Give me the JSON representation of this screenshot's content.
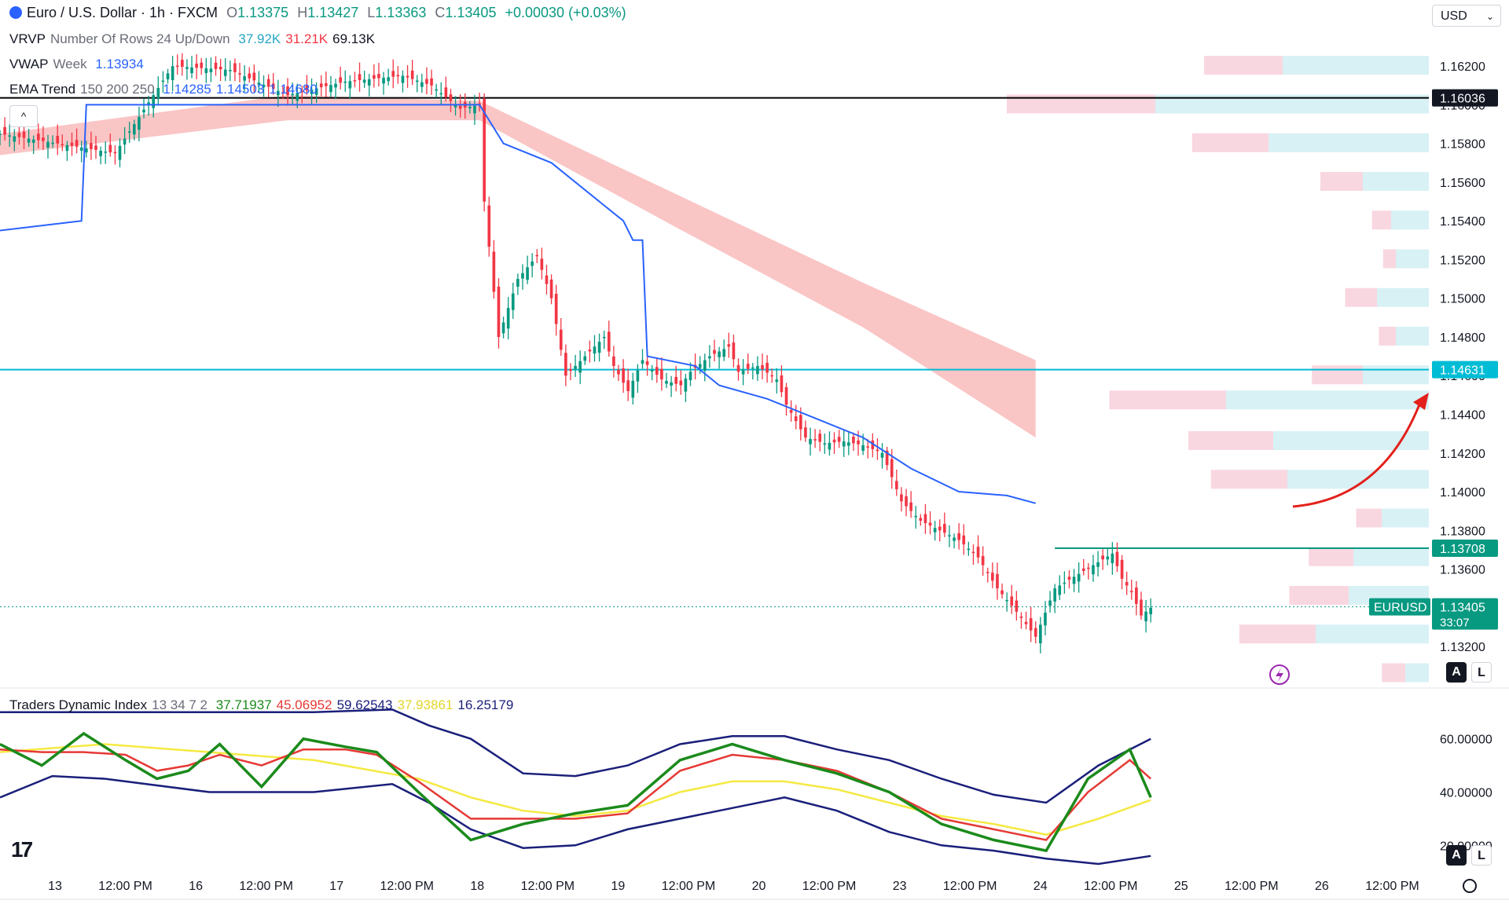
{
  "header": {
    "symbol": "Euro / U.S. Dollar · 1h · FXCM",
    "open_label": "O",
    "open": "1.13375",
    "high_label": "H",
    "high": "1.13427",
    "low_label": "L",
    "low": "1.13363",
    "close_label": "C",
    "close": "1.13405",
    "change": "+0.00030 (+0.03%)",
    "currency": "USD"
  },
  "indicators": {
    "vrvp": {
      "name": "VRVP",
      "params": "Number Of Rows 24 Up/Down",
      "up": "37.92K",
      "down": "31.21K",
      "total": "69.13K"
    },
    "vwap": {
      "name": "VWAP",
      "params": "Week",
      "value": "1.13934"
    },
    "ema": {
      "name": "EMA Trend",
      "params": "150 200 250",
      "v1": "1.14285",
      "v2": "1.14503",
      "v3": "1.14680"
    },
    "tdi": {
      "name": "Traders Dynamic Index",
      "params": "13 34 7 2",
      "v1": "37.71937",
      "v2": "45.06952",
      "v3": "59.62543",
      "v4": "37.93861",
      "v5": "16.25179"
    }
  },
  "badges": {
    "black_line": "1.16036",
    "cyan_line": "1.14631",
    "teal_line": "1.13708",
    "symbol_tag": "EURUSD",
    "last_price": "1.13405",
    "countdown": "33:07"
  },
  "buttons": {
    "auto": "A",
    "log": "L",
    "collapse": "^"
  },
  "colors": {
    "up": "#089981",
    "down": "#f23645",
    "vwap": "#2962ff",
    "ema_band": "#f7a6a6",
    "cyan_line": "#00bcd4",
    "teal_line": "#089981",
    "black_line": "#000000",
    "tdi_green": "#1b8a1b",
    "tdi_red": "#e53935",
    "tdi_yellow": "#f5e942",
    "tdi_band": "#1a1f7a",
    "profile_up": "#d4eff4",
    "profile_down": "#f8d3dd",
    "arrow": "#e3201b"
  },
  "chart_data": {
    "type": "candlestick",
    "symbol": "EURUSD",
    "timeframe": "1h",
    "y_ticks": [
      "1.16200",
      "1.16000",
      "1.15800",
      "1.15600",
      "1.15400",
      "1.15200",
      "1.15000",
      "1.14800",
      "1.14600",
      "1.14400",
      "1.14200",
      "1.14000",
      "1.13800",
      "1.13600",
      "1.13400",
      "1.13200"
    ],
    "ylim": [
      1.1305,
      1.1642
    ],
    "x_ticks": [
      "13",
      "12:00 PM",
      "16",
      "12:00 PM",
      "17",
      "12:00 PM",
      "18",
      "12:00 PM",
      "19",
      "12:00 PM",
      "20",
      "12:00 PM",
      "23",
      "12:00 PM",
      "24",
      "12:00 PM",
      "25",
      "12:00 PM",
      "26",
      "12:00 PM"
    ],
    "price_path": [
      [
        0,
        1.1585
      ],
      [
        12,
        1.158
      ],
      [
        24,
        1.1575
      ],
      [
        36,
        1.162
      ],
      [
        48,
        1.1618
      ],
      [
        60,
        1.1605
      ],
      [
        72,
        1.1612
      ],
      [
        84,
        1.1615
      ],
      [
        90,
        1.161
      ],
      [
        96,
        1.1598
      ],
      [
        100,
        1.16
      ],
      [
        101,
        1.155
      ],
      [
        104,
        1.148
      ],
      [
        108,
        1.151
      ],
      [
        112,
        1.1522
      ],
      [
        115,
        1.15
      ],
      [
        118,
        1.146
      ],
      [
        122,
        1.147
      ],
      [
        126,
        1.148
      ],
      [
        128,
        1.1465
      ],
      [
        131,
        1.1452
      ],
      [
        134,
        1.1468
      ],
      [
        138,
        1.1458
      ],
      [
        142,
        1.1455
      ],
      [
        144,
        1.1462
      ],
      [
        148,
        1.147
      ],
      [
        152,
        1.1475
      ],
      [
        154,
        1.1462
      ],
      [
        158,
        1.1465
      ],
      [
        162,
        1.1458
      ],
      [
        164,
        1.1445
      ],
      [
        168,
        1.1428
      ],
      [
        172,
        1.1425
      ],
      [
        176,
        1.1426
      ],
      [
        180,
        1.1424
      ],
      [
        184,
        1.142
      ],
      [
        188,
        1.1395
      ],
      [
        192,
        1.1385
      ],
      [
        196,
        1.138
      ],
      [
        200,
        1.1375
      ],
      [
        204,
        1.1366
      ],
      [
        208,
        1.135
      ],
      [
        212,
        1.1338
      ],
      [
        216,
        1.1325
      ],
      [
        220,
        1.135
      ],
      [
        224,
        1.1356
      ],
      [
        228,
        1.1362
      ],
      [
        232,
        1.1368
      ],
      [
        234,
        1.1355
      ],
      [
        236,
        1.1348
      ],
      [
        238,
        1.1336
      ],
      [
        240,
        1.134
      ]
    ],
    "vwap": [
      [
        0,
        1.1535
      ],
      [
        17,
        1.154
      ],
      [
        18,
        1.16
      ],
      [
        100,
        1.16
      ],
      [
        105,
        1.158
      ],
      [
        115,
        1.157
      ],
      [
        125,
        1.155
      ],
      [
        130,
        1.154
      ],
      [
        132,
        1.153
      ],
      [
        134,
        1.153
      ],
      [
        135,
        1.147
      ],
      [
        145,
        1.1465
      ],
      [
        150,
        1.1455
      ],
      [
        160,
        1.1448
      ],
      [
        170,
        1.1438
      ],
      [
        180,
        1.1428
      ],
      [
        190,
        1.1412
      ],
      [
        200,
        1.14
      ],
      [
        210,
        1.1398
      ],
      [
        216,
        1.1394
      ]
    ],
    "ema_band_upper": [
      [
        0,
        1.1585
      ],
      [
        60,
        1.1605
      ],
      [
        100,
        1.1602
      ],
      [
        140,
        1.1555
      ],
      [
        180,
        1.1508
      ],
      [
        216,
        1.1468
      ]
    ],
    "ema_band_lower": [
      [
        0,
        1.1574
      ],
      [
        60,
        1.1592
      ],
      [
        100,
        1.1592
      ],
      [
        140,
        1.1538
      ],
      [
        180,
        1.1485
      ],
      [
        216,
        1.1428
      ]
    ],
    "horizontal_levels": [
      1.16036,
      1.14631,
      1.13708
    ],
    "last_price": 1.13405,
    "volume_profile": [
      {
        "price": 1.162,
        "up": 0.31,
        "down": 0.37
      },
      {
        "price": 1.16,
        "up": 0.58,
        "down": 0.7
      },
      {
        "price": 1.158,
        "up": 0.34,
        "down": 0.36
      },
      {
        "price": 1.156,
        "up": 0.14,
        "down": 0.2
      },
      {
        "price": 1.154,
        "up": 0.08,
        "down": 0.09
      },
      {
        "price": 1.152,
        "up": 0.07,
        "down": 0.06
      },
      {
        "price": 1.15,
        "up": 0.11,
        "down": 0.15
      },
      {
        "price": 1.148,
        "up": 0.07,
        "down": 0.08
      },
      {
        "price": 1.146,
        "up": 0.14,
        "down": 0.24
      },
      {
        "price": 1.1447,
        "up": 0.43,
        "down": 0.55
      },
      {
        "price": 1.1426,
        "up": 0.33,
        "down": 0.4
      },
      {
        "price": 1.1406,
        "up": 0.3,
        "down": 0.36
      },
      {
        "price": 1.1386,
        "up": 0.1,
        "down": 0.12
      },
      {
        "price": 1.1366,
        "up": 0.16,
        "down": 0.21
      },
      {
        "price": 1.1346,
        "up": 0.17,
        "down": 0.28
      },
      {
        "price": 1.1326,
        "up": 0.24,
        "down": 0.36
      },
      {
        "price": 1.1306,
        "up": 0.05,
        "down": 0.11
      }
    ]
  },
  "tdi_data": {
    "y_ticks": [
      "60.00000",
      "40.00000",
      "20.00000"
    ],
    "ylim": [
      13,
      72
    ],
    "green": [
      [
        0,
        58
      ],
      [
        8,
        50
      ],
      [
        16,
        62
      ],
      [
        24,
        52
      ],
      [
        30,
        45
      ],
      [
        36,
        48
      ],
      [
        42,
        58
      ],
      [
        50,
        42
      ],
      [
        58,
        60
      ],
      [
        66,
        57
      ],
      [
        72,
        55
      ],
      [
        80,
        40
      ],
      [
        90,
        22
      ],
      [
        100,
        28
      ],
      [
        110,
        32
      ],
      [
        120,
        35
      ],
      [
        130,
        52
      ],
      [
        140,
        58
      ],
      [
        150,
        52
      ],
      [
        160,
        47
      ],
      [
        170,
        40
      ],
      [
        180,
        28
      ],
      [
        190,
        22
      ],
      [
        200,
        18
      ],
      [
        208,
        45
      ],
      [
        216,
        56
      ],
      [
        220,
        38
      ]
    ],
    "red": [
      [
        0,
        56
      ],
      [
        8,
        55
      ],
      [
        16,
        55
      ],
      [
        24,
        54
      ],
      [
        30,
        48
      ],
      [
        36,
        50
      ],
      [
        42,
        54
      ],
      [
        50,
        50
      ],
      [
        58,
        56
      ],
      [
        66,
        56
      ],
      [
        72,
        54
      ],
      [
        80,
        44
      ],
      [
        90,
        30
      ],
      [
        100,
        30
      ],
      [
        110,
        30
      ],
      [
        120,
        32
      ],
      [
        130,
        48
      ],
      [
        140,
        54
      ],
      [
        150,
        52
      ],
      [
        160,
        48
      ],
      [
        170,
        40
      ],
      [
        180,
        30
      ],
      [
        190,
        26
      ],
      [
        200,
        22
      ],
      [
        208,
        40
      ],
      [
        216,
        52
      ],
      [
        220,
        45
      ]
    ],
    "yellow": [
      [
        0,
        55
      ],
      [
        20,
        58
      ],
      [
        40,
        55
      ],
      [
        60,
        52
      ],
      [
        80,
        45
      ],
      [
        90,
        38
      ],
      [
        100,
        33
      ],
      [
        110,
        31
      ],
      [
        120,
        33
      ],
      [
        130,
        40
      ],
      [
        140,
        44
      ],
      [
        150,
        44
      ],
      [
        160,
        41
      ],
      [
        170,
        36
      ],
      [
        180,
        31
      ],
      [
        190,
        28
      ],
      [
        200,
        24
      ],
      [
        210,
        30
      ],
      [
        220,
        37
      ]
    ],
    "upper": [
      [
        0,
        70
      ],
      [
        20,
        70
      ],
      [
        40,
        70
      ],
      [
        60,
        70
      ],
      [
        75,
        71
      ],
      [
        82,
        65
      ],
      [
        90,
        60
      ],
      [
        100,
        47
      ],
      [
        110,
        46
      ],
      [
        120,
        50
      ],
      [
        130,
        58
      ],
      [
        140,
        61
      ],
      [
        150,
        61
      ],
      [
        160,
        56
      ],
      [
        170,
        52
      ],
      [
        180,
        45
      ],
      [
        190,
        39
      ],
      [
        200,
        36
      ],
      [
        210,
        50
      ],
      [
        220,
        60
      ]
    ],
    "lower": [
      [
        0,
        38
      ],
      [
        10,
        46
      ],
      [
        20,
        45
      ],
      [
        40,
        40
      ],
      [
        60,
        40
      ],
      [
        75,
        43
      ],
      [
        82,
        36
      ],
      [
        90,
        26
      ],
      [
        100,
        19
      ],
      [
        110,
        20
      ],
      [
        120,
        26
      ],
      [
        130,
        30
      ],
      [
        140,
        34
      ],
      [
        150,
        38
      ],
      [
        160,
        33
      ],
      [
        170,
        25
      ],
      [
        180,
        20
      ],
      [
        190,
        18
      ],
      [
        200,
        15
      ],
      [
        210,
        13
      ],
      [
        220,
        16
      ]
    ]
  }
}
